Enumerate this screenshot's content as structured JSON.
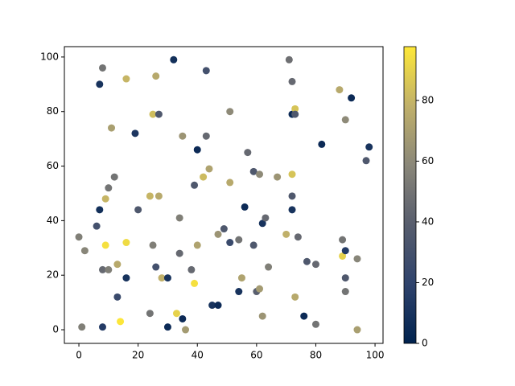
{
  "chart_data": {
    "type": "scatter",
    "x": [
      0,
      1,
      2,
      8,
      7,
      7,
      6,
      8,
      8,
      9,
      9,
      10,
      10,
      11,
      12,
      13,
      13,
      14,
      16,
      16,
      16,
      19,
      20,
      24,
      24,
      25,
      25,
      26,
      27,
      26,
      27,
      28,
      30,
      30,
      32,
      33,
      34,
      34,
      35,
      35,
      36,
      38,
      39,
      39,
      40,
      40,
      42,
      43,
      43,
      44,
      45,
      47,
      47,
      49,
      51,
      51,
      51,
      54,
      54,
      55,
      56,
      57,
      59,
      59,
      60,
      61,
      61,
      62,
      62,
      63,
      64,
      67,
      70,
      71,
      72,
      72,
      72,
      72,
      72,
      73,
      73,
      73,
      74,
      76,
      77,
      80,
      80,
      82,
      88,
      89,
      89,
      90,
      90,
      90,
      90,
      92,
      94,
      94,
      97,
      98
    ],
    "y": [
      34,
      1,
      29,
      96,
      90,
      44,
      38,
      22,
      1,
      31,
      48,
      52,
      22,
      74,
      56,
      12,
      24,
      3,
      92,
      32,
      19,
      72,
      44,
      49,
      6,
      31,
      79,
      93,
      79,
      23,
      49,
      19,
      19,
      1,
      99,
      6,
      28,
      41,
      71,
      4,
      0,
      22,
      53,
      17,
      66,
      31,
      56,
      71,
      95,
      59,
      9,
      9,
      35,
      37,
      80,
      54,
      32,
      14,
      33,
      19,
      45,
      65,
      58,
      31,
      14,
      15,
      57,
      39,
      5,
      41,
      23,
      56,
      35,
      99,
      49,
      44,
      57,
      91,
      79,
      81,
      79,
      12,
      34,
      5,
      25,
      24,
      2,
      68,
      88,
      27,
      33,
      29,
      77,
      19,
      14,
      85,
      26,
      0,
      62,
      67
    ],
    "c": [
      55,
      55,
      58,
      50,
      10,
      8,
      30,
      45,
      15,
      95,
      80,
      50,
      55,
      70,
      50,
      25,
      75,
      97,
      80,
      93,
      10,
      12,
      35,
      80,
      50,
      55,
      83,
      75,
      35,
      30,
      75,
      78,
      10,
      5,
      8,
      90,
      45,
      55,
      65,
      5,
      68,
      45,
      35,
      95,
      5,
      72,
      82,
      45,
      30,
      72,
      10,
      5,
      65,
      35,
      60,
      75,
      25,
      10,
      50,
      72,
      5,
      45,
      35,
      35,
      40,
      68,
      60,
      10,
      65,
      45,
      55,
      65,
      78,
      48,
      35,
      10,
      85,
      45,
      5,
      85,
      35,
      75,
      45,
      5,
      35,
      45,
      50,
      5,
      75,
      90,
      50,
      15,
      60,
      35,
      50,
      5,
      58,
      70,
      35,
      10
    ],
    "colormap": "cividis",
    "clim": [
      0,
      97.7
    ],
    "colorbar_ticks": [
      0,
      20,
      40,
      60,
      80
    ],
    "xlim": [
      -4.9,
      102.7
    ],
    "xticks": [
      0,
      20,
      40,
      60,
      80,
      100
    ],
    "ylim": [
      -5,
      103.8
    ],
    "yticks": [
      0,
      20,
      40,
      60,
      80,
      100
    ]
  }
}
